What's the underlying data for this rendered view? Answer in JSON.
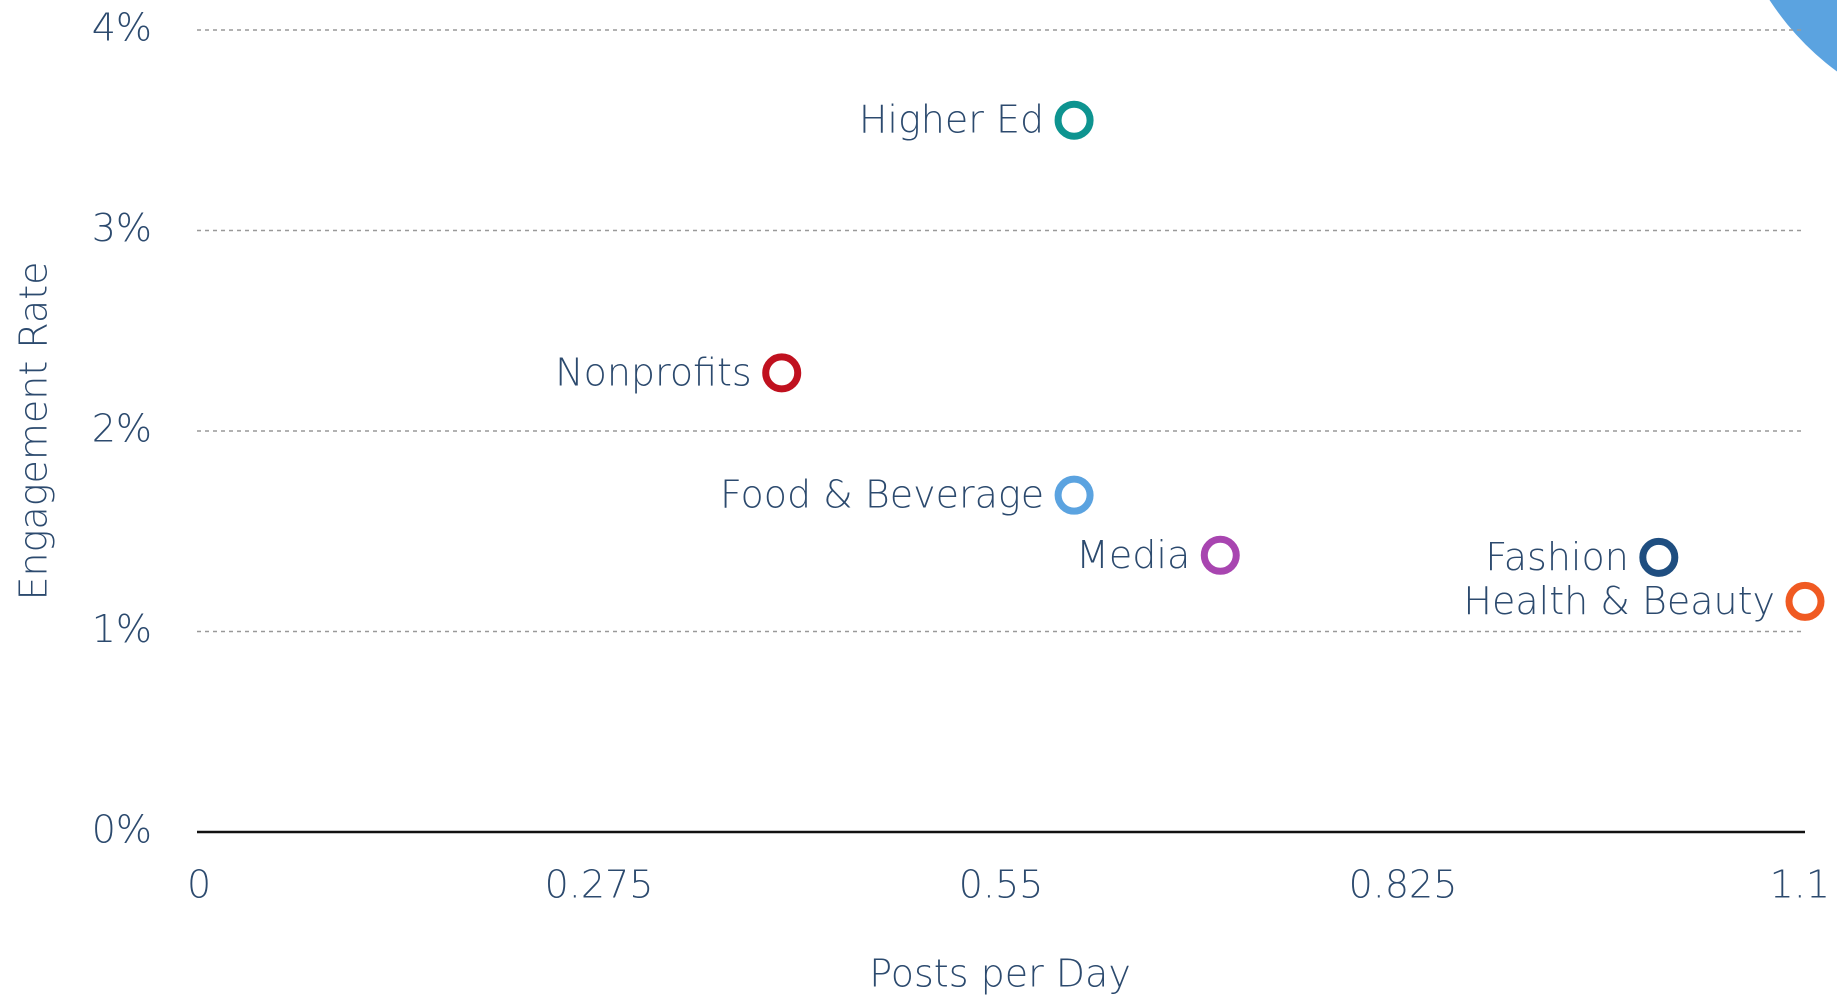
{
  "chart_data": {
    "type": "scatter",
    "x_label": "Posts per Day",
    "y_label": "Engagement Rate",
    "xlim": [
      0,
      1.1
    ],
    "xticks": [
      0,
      0.275,
      0.55,
      0.825,
      1.1
    ],
    "ylim": [
      0,
      4
    ],
    "yticks": [
      {
        "value": 0,
        "label": "0%"
      },
      {
        "value": 1,
        "label": "1%"
      },
      {
        "value": 2,
        "label": "2%"
      },
      {
        "value": 3,
        "label": "3%"
      },
      {
        "value": 4,
        "label": "4%"
      }
    ],
    "grid": true,
    "series": [
      {
        "name": "Higher Ed",
        "color": "#0e9490",
        "x": [
          0.6
        ],
        "values": [
          3.55
        ]
      },
      {
        "name": "Nonprofits",
        "color": "#c0111f",
        "x": [
          0.4
        ],
        "values": [
          2.29
        ]
      },
      {
        "name": "Food & Beverage",
        "color": "#5ba3e0",
        "x": [
          0.6
        ],
        "values": [
          1.68
        ]
      },
      {
        "name": "Media",
        "color": "#a845b0",
        "x": [
          0.7
        ],
        "values": [
          1.38
        ]
      },
      {
        "name": "Fashion",
        "color": "#1f4e80",
        "x": [
          1.0
        ],
        "values": [
          1.37
        ]
      },
      {
        "name": "Health & Beauty",
        "color": "#f05a22",
        "x": [
          1.1
        ],
        "values": [
          1.15
        ]
      }
    ]
  }
}
